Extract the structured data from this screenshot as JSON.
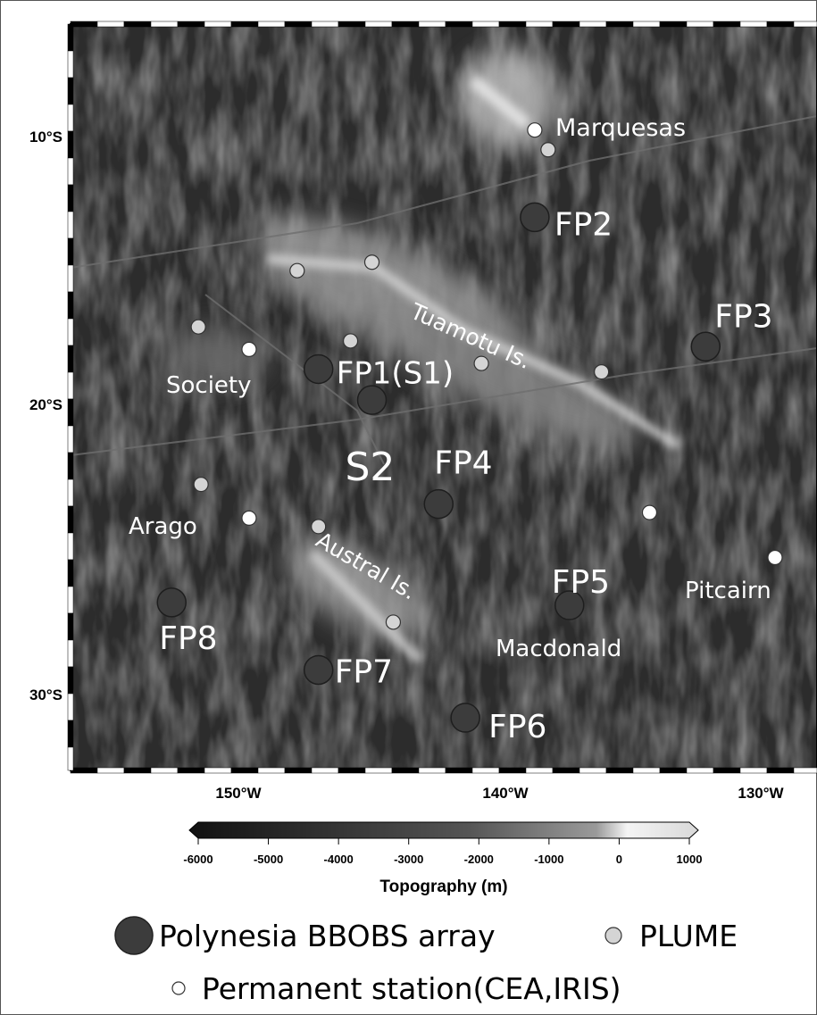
{
  "map": {
    "latitude_labels": [
      "10°S",
      "20°S",
      "30°S"
    ],
    "longitude_labels": [
      "150°W",
      "140°W",
      "130°W"
    ],
    "place_labels": [
      "Marquesas",
      "Tuamotu Is.",
      "Society",
      "Arago",
      "Austral Is.",
      "Pitcairn",
      "Macdonald"
    ]
  },
  "stations": {
    "bbobs": [
      {
        "label": "FP1(S1)",
        "lon": -147.0,
        "lat": -18.3
      },
      {
        "label": "S2",
        "lon": -145.0,
        "lat": -19.4
      },
      {
        "label": "FP2",
        "lon": -138.9,
        "lat": -12.9
      },
      {
        "label": "FP3",
        "lon": -132.5,
        "lat": -17.5
      },
      {
        "label": "FP4",
        "lon": -142.5,
        "lat": -23.1
      },
      {
        "label": "FP5",
        "lon": -137.6,
        "lat": -26.7
      },
      {
        "label": "FP6",
        "lon": -141.5,
        "lat": -30.7
      },
      {
        "label": "FP7",
        "lon": -147.0,
        "lat": -29.0
      },
      {
        "label": "FP8",
        "lon": -152.5,
        "lat": -26.6
      }
    ],
    "plume": [
      {
        "lon": -138.4,
        "lat": -10.5
      },
      {
        "lon": -145.0,
        "lat": -14.5
      },
      {
        "lon": -147.8,
        "lat": -14.8
      },
      {
        "lon": -151.5,
        "lat": -16.8
      },
      {
        "lon": -145.8,
        "lat": -17.3
      },
      {
        "lon": -140.9,
        "lat": -18.1
      },
      {
        "lon": -136.4,
        "lat": -18.4
      },
      {
        "lon": -151.4,
        "lat": -22.4
      },
      {
        "lon": -147.0,
        "lat": -23.9
      },
      {
        "lon": -144.2,
        "lat": -27.3
      }
    ],
    "permanent": [
      {
        "lon": -138.9,
        "lat": -9.8
      },
      {
        "lon": -149.6,
        "lat": -17.6
      },
      {
        "lon": -149.6,
        "lat": -23.6
      },
      {
        "lon": -134.6,
        "lat": -23.4
      },
      {
        "lon": -129.9,
        "lat": -25.0
      }
    ]
  },
  "colorbar": {
    "ticks": [
      "-6000",
      "-5000",
      "-4000",
      "-3000",
      "-2000",
      "-1000",
      "0",
      "1000"
    ],
    "tick_values": [
      -6000,
      -5000,
      -4000,
      -3000,
      -2000,
      -1000,
      0,
      1000
    ],
    "range": [
      -6000,
      1000
    ],
    "title": "Topography (m)"
  },
  "legend": {
    "bbobs_label": "Polynesia BBOBS array",
    "plume_label": "PLUME",
    "permanent_label": "Permanent station(CEA,IRIS)"
  },
  "colors": {
    "bbobs_fill": "#3c3c3c",
    "plume_fill": "#d4d4d4",
    "permanent_fill": "#ffffff",
    "text_on_map": "#ffffff"
  }
}
